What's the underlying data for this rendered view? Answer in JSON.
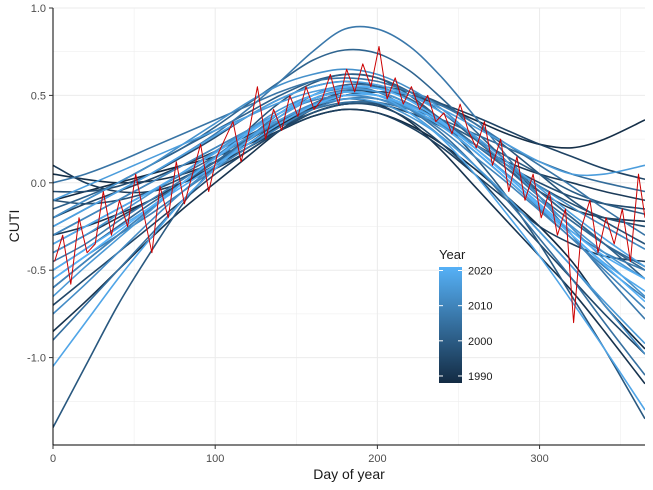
{
  "chart_data": {
    "type": "line",
    "title": "",
    "xlabel": "Day of year",
    "ylabel": "CUTI",
    "xlim": [
      0,
      365
    ],
    "ylim": [
      -1.5,
      1.0
    ],
    "x_ticks": [
      0,
      100,
      200,
      300
    ],
    "x_tick_labels": [
      "0",
      "100",
      "200",
      "300"
    ],
    "y_ticks": [
      -1.0,
      -0.5,
      0.0,
      0.5,
      1.0
    ],
    "y_tick_labels": [
      "-1.0",
      "-0.5",
      "0.0",
      "0.5",
      "1.0"
    ],
    "grid": true,
    "legend": {
      "title": "Year",
      "position": "inside-bottom-right",
      "type": "colorbar",
      "range": [
        1988,
        2021
      ],
      "ticks": [
        1990,
        2000,
        2010,
        2020
      ],
      "tick_labels": [
        "1990",
        "2000",
        "2010",
        "2020"
      ],
      "color_low": "#132b43",
      "color_high": "#56b1f7"
    },
    "curve_x": [
      0,
      20,
      40,
      60,
      80,
      100,
      120,
      140,
      160,
      180,
      200,
      220,
      240,
      260,
      280,
      300,
      320,
      340,
      365
    ],
    "series": [
      {
        "year": 1988,
        "y": [
          -0.1,
          -0.05,
          0.0,
          0.05,
          0.1,
          0.15,
          0.22,
          0.3,
          0.38,
          0.42,
          0.4,
          0.33,
          0.22,
          0.08,
          -0.08,
          -0.25,
          -0.45,
          -0.7,
          -0.95
        ]
      },
      {
        "year": 1989,
        "y": [
          0.05,
          0.02,
          0.0,
          0.01,
          0.05,
          0.12,
          0.22,
          0.33,
          0.43,
          0.5,
          0.52,
          0.5,
          0.44,
          0.36,
          0.28,
          0.22,
          0.2,
          0.25,
          0.36
        ]
      },
      {
        "year": 1990,
        "y": [
          -0.85,
          -0.68,
          -0.5,
          -0.32,
          -0.15,
          0.0,
          0.15,
          0.3,
          0.42,
          0.48,
          0.45,
          0.35,
          0.18,
          -0.02,
          -0.22,
          -0.42,
          -0.62,
          -0.85,
          -1.15
        ]
      },
      {
        "year": 1991,
        "y": [
          -0.3,
          -0.25,
          -0.18,
          -0.1,
          0.0,
          0.1,
          0.22,
          0.35,
          0.45,
          0.52,
          0.52,
          0.45,
          0.35,
          0.22,
          0.08,
          -0.05,
          -0.15,
          -0.2,
          -0.22
        ]
      },
      {
        "year": 1992,
        "y": [
          0.1,
          0.0,
          -0.05,
          -0.05,
          0.0,
          0.08,
          0.18,
          0.3,
          0.4,
          0.45,
          0.45,
          0.4,
          0.32,
          0.22,
          0.12,
          0.05,
          0.0,
          -0.05,
          -0.1
        ]
      },
      {
        "year": 1993,
        "y": [
          -0.4,
          -0.3,
          -0.2,
          -0.1,
          0.0,
          0.1,
          0.2,
          0.3,
          0.38,
          0.42,
          0.4,
          0.32,
          0.2,
          0.05,
          -0.1,
          -0.25,
          -0.35,
          -0.42,
          -0.45
        ]
      },
      {
        "year": 1994,
        "y": [
          -0.2,
          -0.12,
          -0.05,
          0.02,
          0.1,
          0.18,
          0.27,
          0.36,
          0.44,
          0.5,
          0.52,
          0.5,
          0.45,
          0.38,
          0.3,
          0.22,
          0.15,
          0.08,
          0.02
        ]
      },
      {
        "year": 1995,
        "y": [
          -0.7,
          -0.55,
          -0.4,
          -0.25,
          -0.1,
          0.05,
          0.18,
          0.3,
          0.4,
          0.45,
          0.44,
          0.36,
          0.22,
          0.05,
          -0.15,
          -0.35,
          -0.55,
          -0.75,
          -0.98
        ]
      },
      {
        "year": 1996,
        "y": [
          -0.05,
          -0.05,
          -0.02,
          0.05,
          0.15,
          0.26,
          0.38,
          0.48,
          0.55,
          0.58,
          0.55,
          0.47,
          0.35,
          0.22,
          0.1,
          0.0,
          -0.08,
          -0.12,
          -0.15
        ]
      },
      {
        "year": 1997,
        "y": [
          -0.1,
          -0.12,
          -0.1,
          -0.05,
          0.03,
          0.12,
          0.22,
          0.32,
          0.4,
          0.45,
          0.45,
          0.4,
          0.32,
          0.22,
          0.1,
          -0.02,
          -0.12,
          -0.2,
          -0.25
        ]
      },
      {
        "year": 1998,
        "y": [
          -0.6,
          -0.45,
          -0.3,
          -0.15,
          0.0,
          0.12,
          0.24,
          0.35,
          0.45,
          0.52,
          0.55,
          0.52,
          0.45,
          0.34,
          0.2,
          0.05,
          -0.1,
          -0.22,
          -0.35
        ]
      },
      {
        "year": 1999,
        "y": [
          -1.4,
          -1.05,
          -0.7,
          -0.4,
          -0.12,
          0.1,
          0.3,
          0.46,
          0.57,
          0.62,
          0.6,
          0.5,
          0.35,
          0.15,
          -0.08,
          -0.35,
          -0.65,
          -0.95,
          -1.35
        ]
      },
      {
        "year": 2000,
        "y": [
          -0.3,
          -0.2,
          -0.1,
          0.0,
          0.1,
          0.2,
          0.3,
          0.4,
          0.48,
          0.52,
          0.5,
          0.44,
          0.35,
          0.25,
          0.15,
          0.05,
          -0.05,
          -0.12,
          -0.18
        ]
      },
      {
        "year": 2001,
        "y": [
          -0.15,
          -0.08,
          0.0,
          0.1,
          0.2,
          0.3,
          0.4,
          0.5,
          0.58,
          0.62,
          0.6,
          0.52,
          0.4,
          0.25,
          0.1,
          -0.05,
          -0.2,
          -0.35,
          -0.55
        ]
      },
      {
        "year": 2002,
        "y": [
          -0.2,
          -0.1,
          0.0,
          0.1,
          0.2,
          0.32,
          0.45,
          0.58,
          0.7,
          0.76,
          0.74,
          0.64,
          0.48,
          0.3,
          0.12,
          -0.05,
          -0.2,
          -0.35,
          -0.5
        ]
      },
      {
        "year": 2003,
        "y": [
          -0.5,
          -0.38,
          -0.25,
          -0.12,
          0.0,
          0.12,
          0.25,
          0.38,
          0.5,
          0.56,
          0.55,
          0.48,
          0.36,
          0.22,
          0.08,
          -0.08,
          -0.22,
          -0.35,
          -0.48
        ]
      },
      {
        "year": 2004,
        "y": [
          -0.35,
          -0.25,
          -0.15,
          -0.05,
          0.05,
          0.15,
          0.25,
          0.35,
          0.42,
          0.46,
          0.46,
          0.42,
          0.36,
          0.28,
          0.2,
          0.12,
          0.05,
          0.0,
          -0.05
        ]
      },
      {
        "year": 2005,
        "y": [
          -0.9,
          -0.7,
          -0.5,
          -0.3,
          -0.1,
          0.08,
          0.25,
          0.4,
          0.5,
          0.55,
          0.52,
          0.42,
          0.28,
          0.1,
          -0.1,
          -0.32,
          -0.55,
          -0.8,
          -1.1
        ]
      },
      {
        "year": 2006,
        "y": [
          0.0,
          0.05,
          0.12,
          0.2,
          0.28,
          0.36,
          0.44,
          0.52,
          0.58,
          0.6,
          0.58,
          0.52,
          0.44,
          0.34,
          0.22,
          0.1,
          -0.02,
          -0.15,
          -0.3
        ]
      },
      {
        "year": 2007,
        "y": [
          -0.25,
          -0.15,
          -0.05,
          0.05,
          0.16,
          0.28,
          0.42,
          0.58,
          0.75,
          0.88,
          0.88,
          0.78,
          0.6,
          0.38,
          0.15,
          -0.08,
          -0.3,
          -0.52,
          -0.78
        ]
      },
      {
        "year": 2008,
        "y": [
          -0.45,
          -0.35,
          -0.22,
          -0.1,
          0.02,
          0.14,
          0.26,
          0.38,
          0.48,
          0.53,
          0.52,
          0.45,
          0.33,
          0.18,
          0.02,
          -0.14,
          -0.28,
          -0.4,
          -0.5
        ]
      },
      {
        "year": 2009,
        "y": [
          -0.55,
          -0.42,
          -0.3,
          -0.18,
          -0.05,
          0.08,
          0.2,
          0.32,
          0.42,
          0.48,
          0.48,
          0.42,
          0.32,
          0.18,
          0.02,
          -0.15,
          -0.32,
          -0.48,
          -0.66
        ]
      },
      {
        "year": 2010,
        "y": [
          -0.6,
          -0.45,
          -0.3,
          -0.15,
          0.0,
          0.15,
          0.28,
          0.4,
          0.48,
          0.52,
          0.5,
          0.42,
          0.3,
          0.15,
          0.0,
          -0.16,
          -0.32,
          -0.5,
          -0.72
        ]
      },
      {
        "year": 2011,
        "y": [
          -0.3,
          -0.2,
          -0.1,
          0.0,
          0.1,
          0.2,
          0.3,
          0.4,
          0.47,
          0.5,
          0.48,
          0.42,
          0.33,
          0.22,
          0.1,
          -0.02,
          -0.14,
          -0.25,
          -0.38
        ]
      },
      {
        "year": 2012,
        "y": [
          -0.75,
          -0.58,
          -0.4,
          -0.22,
          -0.05,
          0.1,
          0.24,
          0.36,
          0.45,
          0.5,
          0.48,
          0.4,
          0.26,
          0.1,
          -0.08,
          -0.28,
          -0.48,
          -0.7,
          -0.98
        ]
      },
      {
        "year": 2013,
        "y": [
          -0.2,
          -0.1,
          0.0,
          0.1,
          0.22,
          0.34,
          0.46,
          0.56,
          0.62,
          0.65,
          0.62,
          0.54,
          0.42,
          0.26,
          0.1,
          -0.08,
          -0.26,
          -0.44,
          -0.65
        ]
      },
      {
        "year": 2014,
        "y": [
          -0.4,
          -0.3,
          -0.18,
          -0.06,
          0.06,
          0.18,
          0.3,
          0.42,
          0.5,
          0.54,
          0.52,
          0.45,
          0.34,
          0.2,
          0.05,
          -0.1,
          -0.25,
          -0.4,
          -0.55
        ]
      },
      {
        "year": 2015,
        "y": [
          -0.65,
          -0.48,
          -0.32,
          -0.16,
          0.0,
          0.14,
          0.26,
          0.36,
          0.44,
          0.48,
          0.46,
          0.38,
          0.26,
          0.1,
          -0.08,
          -0.28,
          -0.48,
          -0.68,
          -0.92
        ]
      },
      {
        "year": 2016,
        "y": [
          -0.1,
          -0.02,
          0.06,
          0.14,
          0.22,
          0.3,
          0.38,
          0.46,
          0.52,
          0.55,
          0.54,
          0.5,
          0.42,
          0.32,
          0.22,
          0.12,
          0.05,
          0.05,
          0.1
        ]
      },
      {
        "year": 2017,
        "y": [
          -0.25,
          -0.15,
          -0.05,
          0.05,
          0.16,
          0.27,
          0.38,
          0.48,
          0.55,
          0.58,
          0.56,
          0.5,
          0.4,
          0.27,
          0.12,
          -0.03,
          -0.18,
          -0.32,
          -0.48
        ]
      },
      {
        "year": 2018,
        "y": [
          -1.05,
          -0.8,
          -0.55,
          -0.32,
          -0.1,
          0.08,
          0.24,
          0.38,
          0.48,
          0.52,
          0.5,
          0.4,
          0.25,
          0.05,
          -0.18,
          -0.42,
          -0.68,
          -0.95,
          -1.3
        ]
      },
      {
        "year": 2019,
        "y": [
          -0.35,
          -0.25,
          -0.15,
          -0.05,
          0.06,
          0.17,
          0.29,
          0.4,
          0.48,
          0.52,
          0.5,
          0.43,
          0.32,
          0.18,
          0.02,
          -0.14,
          -0.3,
          -0.46,
          -0.62
        ]
      },
      {
        "year": 2020,
        "y": [
          -0.5,
          -0.38,
          -0.26,
          -0.14,
          -0.02,
          0.1,
          0.22,
          0.34,
          0.44,
          0.5,
          0.5,
          0.44,
          0.34,
          0.2,
          0.04,
          -0.12,
          -0.28,
          -0.42,
          -0.55
        ]
      },
      {
        "year": 2021,
        "y": [
          -0.55,
          -0.42,
          -0.28,
          -0.14,
          0.0,
          0.14,
          0.28,
          0.4,
          0.5,
          0.55,
          0.54,
          0.47,
          0.35,
          0.2,
          0.04,
          -0.13,
          -0.3,
          -0.47,
          -0.68
        ]
      }
    ],
    "observed_series": {
      "color": "#cc0000",
      "x": [
        1,
        6,
        11,
        16,
        21,
        26,
        31,
        36,
        41,
        46,
        51,
        56,
        61,
        66,
        71,
        76,
        81,
        86,
        91,
        96,
        101,
        106,
        111,
        116,
        121,
        126,
        131,
        136,
        141,
        146,
        151,
        156,
        161,
        166,
        171,
        176,
        181,
        186,
        191,
        196,
        201,
        206,
        211,
        216,
        221,
        226,
        231,
        236,
        241,
        246,
        251,
        256,
        261,
        266,
        271,
        276,
        281,
        286,
        291,
        296,
        301,
        306,
        311,
        316,
        321,
        326,
        331,
        336,
        341,
        346,
        351,
        356,
        361,
        365
      ],
      "y": [
        -0.45,
        -0.3,
        -0.58,
        -0.2,
        -0.4,
        -0.35,
        -0.05,
        -0.3,
        -0.1,
        -0.25,
        0.05,
        -0.18,
        -0.4,
        -0.02,
        -0.2,
        0.12,
        -0.12,
        0.05,
        0.22,
        -0.05,
        0.15,
        0.25,
        0.35,
        0.12,
        0.3,
        0.55,
        0.25,
        0.42,
        0.3,
        0.5,
        0.38,
        0.55,
        0.42,
        0.48,
        0.62,
        0.45,
        0.65,
        0.52,
        0.68,
        0.55,
        0.78,
        0.48,
        0.6,
        0.45,
        0.55,
        0.42,
        0.5,
        0.35,
        0.4,
        0.28,
        0.45,
        0.3,
        0.2,
        0.35,
        0.1,
        0.25,
        -0.05,
        0.15,
        -0.1,
        0.05,
        -0.2,
        -0.05,
        -0.3,
        -0.15,
        -0.8,
        -0.25,
        -0.1,
        -0.4,
        -0.2,
        -0.35,
        -0.15,
        -0.45,
        0.05,
        -0.2
      ]
    }
  }
}
